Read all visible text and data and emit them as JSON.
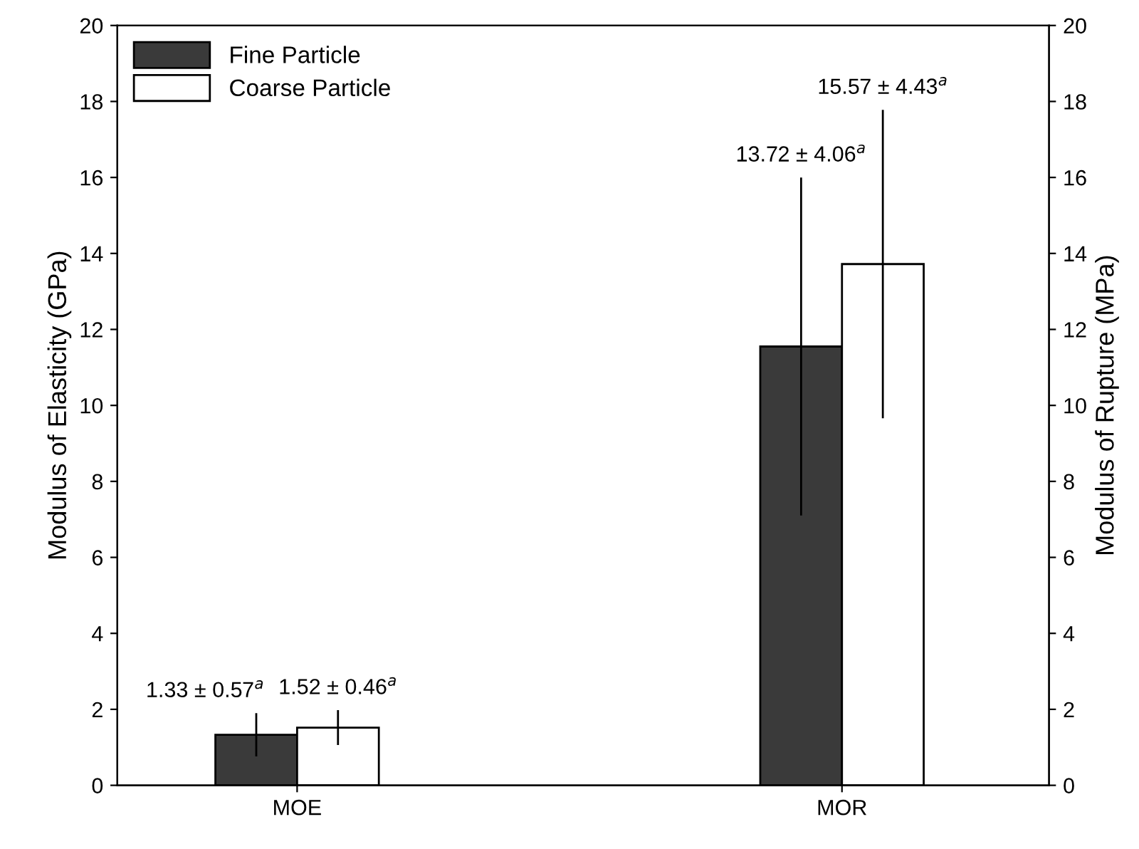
{
  "chart_data": {
    "type": "bar",
    "categories": [
      "MOE",
      "MOR"
    ],
    "ylabel": "Modulus of Elasticity (GPa)",
    "y2label": "Modulus of Rupture (MPa)",
    "series": [
      {
        "name": "Fine Particle",
        "color": "#3a3a3a",
        "values": [
          1.33,
          11.55
        ],
        "errors": [
          0.57,
          4.45
        ],
        "value_labels": [
          "1.33 ± 0.57$^{a}$",
          null
        ]
      },
      {
        "name": "Coarse Particle",
        "color": "#ffffff",
        "values": [
          1.52,
          13.72
        ],
        "errors": [
          0.46,
          4.06
        ],
        "value_labels": [
          "1.52 ± 0.46$^{a}$",
          null
        ]
      }
    ],
    "annotations": [
      "13.72 ± 4.06$^{a}$",
      "15.57 ± 4.43$^{a}$"
    ],
    "ylim": [
      0,
      20
    ],
    "yticks": [
      0,
      2,
      4,
      6,
      8,
      10,
      12,
      14,
      16,
      18,
      20
    ],
    "y2lim": [
      0,
      20
    ],
    "y2ticks": [
      0,
      2,
      4,
      6,
      8,
      10,
      12,
      14,
      16,
      18,
      20
    ],
    "legend": "top left",
    "grid": false
  }
}
